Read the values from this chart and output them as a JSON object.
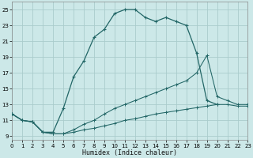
{
  "xlabel": "Humidex (Indice chaleur)",
  "background_color": "#cce8e8",
  "grid_color": "#aacccc",
  "line_color": "#226666",
  "xlim": [
    0,
    23
  ],
  "ylim": [
    8.5,
    26.0
  ],
  "xticks": [
    0,
    1,
    2,
    3,
    4,
    5,
    6,
    7,
    8,
    9,
    10,
    11,
    12,
    13,
    14,
    15,
    16,
    17,
    18,
    19,
    20,
    21,
    22,
    23
  ],
  "yticks": [
    9,
    11,
    13,
    15,
    17,
    19,
    21,
    23,
    25
  ],
  "series1_x": [
    0,
    1,
    2,
    3,
    4,
    5,
    6,
    7,
    8,
    9,
    10,
    11,
    12,
    13,
    14,
    15,
    16,
    17,
    18,
    19,
    20
  ],
  "series1_y": [
    11.8,
    11.0,
    10.8,
    9.5,
    9.5,
    12.5,
    16.5,
    18.5,
    21.5,
    22.5,
    24.5,
    25.0,
    25.0,
    24.0,
    23.5,
    24.0,
    23.5,
    23.0,
    19.5,
    13.5,
    13.0
  ],
  "series2_x": [
    0,
    1,
    2,
    3,
    4,
    5,
    6,
    7,
    8,
    9,
    10,
    11,
    12,
    13,
    14,
    15,
    16,
    17,
    18,
    19,
    20,
    21,
    22,
    23
  ],
  "series2_y": [
    11.8,
    11.0,
    10.8,
    9.5,
    9.3,
    9.3,
    9.8,
    10.5,
    11.0,
    11.8,
    12.5,
    13.0,
    13.5,
    14.0,
    14.5,
    15.0,
    15.5,
    16.0,
    17.0,
    19.2,
    14.0,
    13.5,
    13.0,
    13.0
  ],
  "series3_x": [
    0,
    1,
    2,
    3,
    4,
    5,
    6,
    7,
    8,
    9,
    10,
    11,
    12,
    13,
    14,
    15,
    16,
    17,
    18,
    19,
    20,
    21,
    22,
    23
  ],
  "series3_y": [
    11.8,
    11.0,
    10.8,
    9.5,
    9.3,
    9.3,
    9.5,
    9.8,
    10.0,
    10.3,
    10.6,
    11.0,
    11.2,
    11.5,
    11.8,
    12.0,
    12.2,
    12.4,
    12.6,
    12.8,
    13.0,
    13.0,
    12.8,
    12.8
  ]
}
